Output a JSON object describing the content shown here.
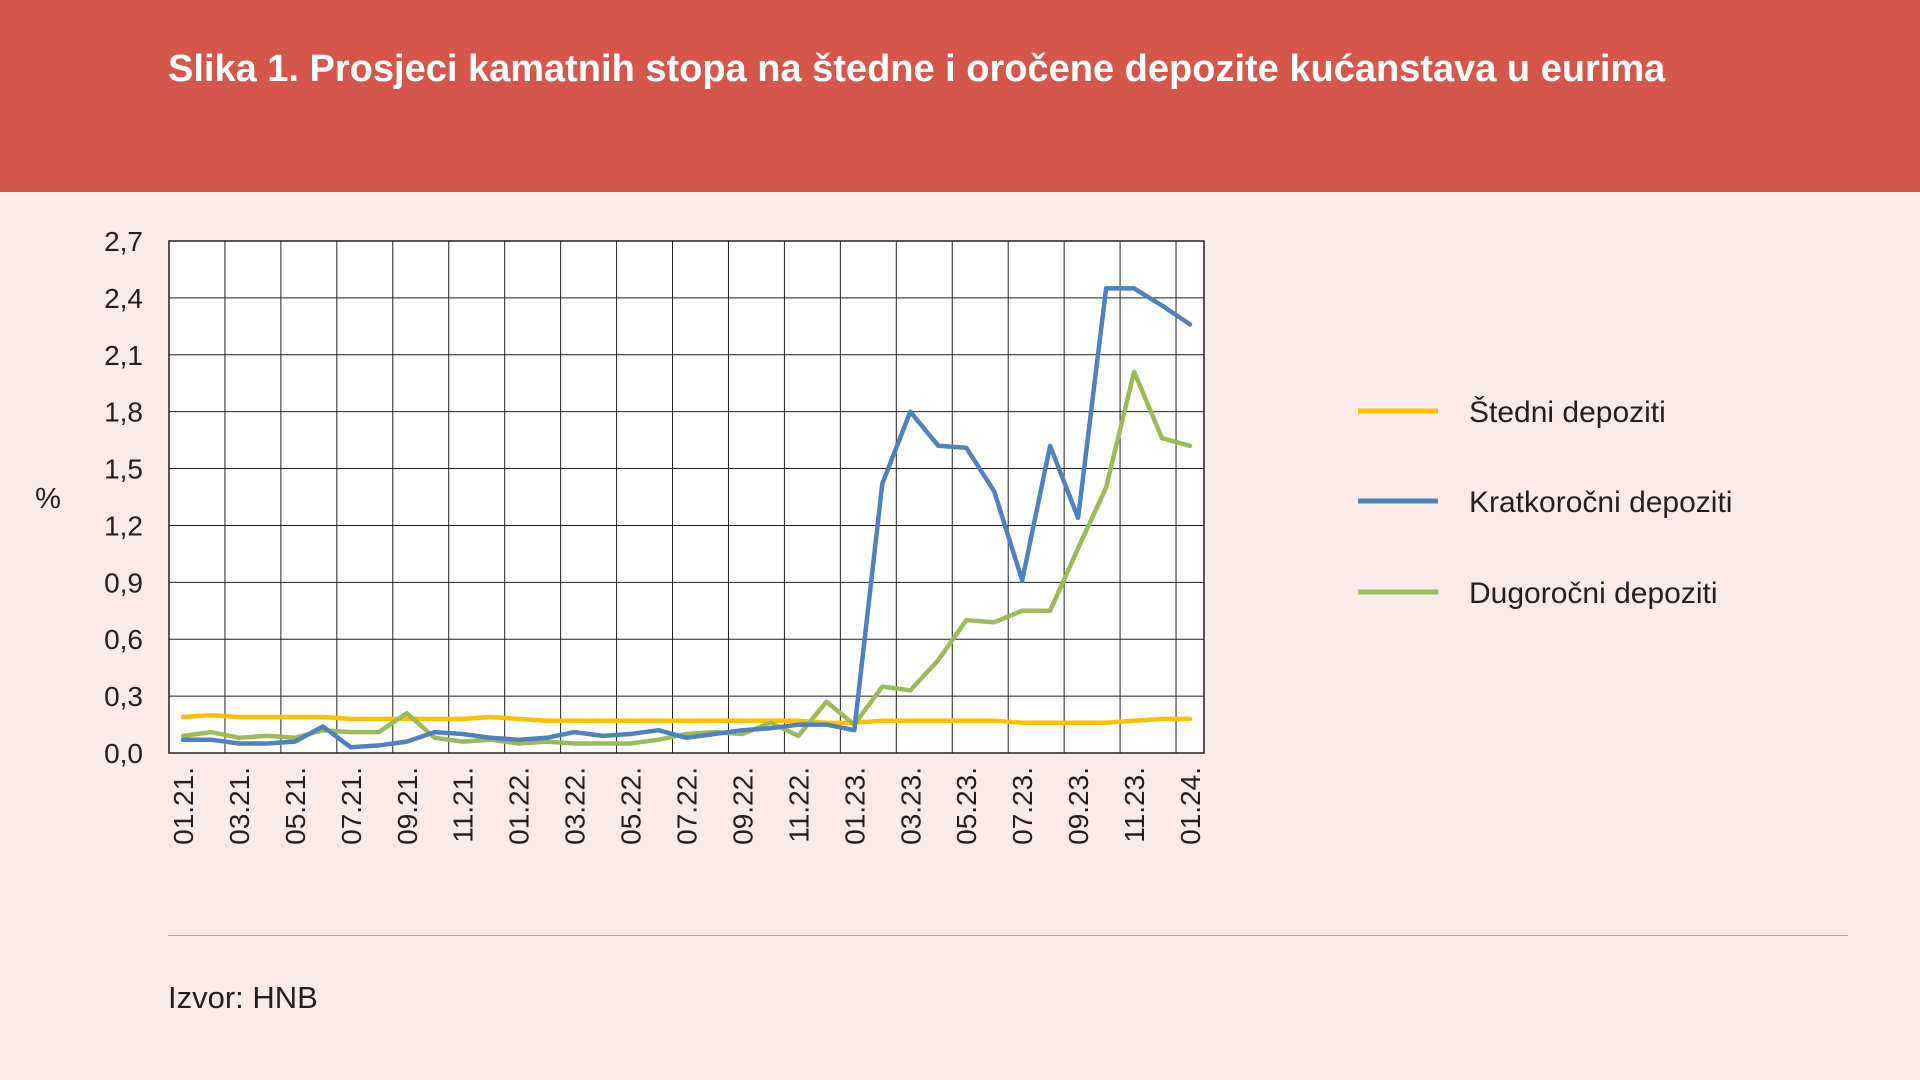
{
  "header": {
    "title": "Slika 1. Prosjeci kamatnih stopa na štedne i oročene depozite kućanstava u eurima"
  },
  "footer": {
    "source": "Izvor: HNB"
  },
  "chart_data": {
    "type": "line",
    "title": "Slika 1. Prosjeci kamatnih stopa na štedne i oročene depozite kućanstava u eurima",
    "xlabel": "",
    "ylabel": "%",
    "ylim": [
      0,
      2.7
    ],
    "yticks": [
      "0,0",
      "0,3",
      "0,6",
      "0,9",
      "1,2",
      "1,5",
      "1,8",
      "2,1",
      "2,4",
      "2,7"
    ],
    "grid": true,
    "legend_position": "right",
    "x": [
      "01.21.",
      "02.21.",
      "03.21.",
      "04.21.",
      "05.21.",
      "06.21.",
      "07.21.",
      "08.21.",
      "09.21.",
      "10.21.",
      "11.21.",
      "12.21.",
      "01.22.",
      "02.22.",
      "03.22.",
      "04.22.",
      "05.22.",
      "06.22.",
      "07.22.",
      "08.22.",
      "09.22.",
      "10.22.",
      "11.22.",
      "12.22.",
      "01.23.",
      "02.23.",
      "03.23.",
      "04.23.",
      "05.23.",
      "06.23.",
      "07.23.",
      "08.23.",
      "09.23.",
      "10.23.",
      "11.23.",
      "12.23.",
      "01.24."
    ],
    "xtick_labels": [
      "01.21.",
      "03.21.",
      "05.21.",
      "07.21.",
      "09.21.",
      "11.21.",
      "01.22.",
      "03.22.",
      "05.22.",
      "07.22.",
      "09.22.",
      "11.22.",
      "01.23.",
      "03.23.",
      "05.23.",
      "07.23.",
      "09.23.",
      "11.23.",
      "01.24."
    ],
    "series": [
      {
        "name": "Štedni depoziti",
        "color": "#ffc000",
        "values": [
          0.19,
          0.2,
          0.19,
          0.19,
          0.19,
          0.19,
          0.18,
          0.18,
          0.18,
          0.18,
          0.18,
          0.19,
          0.18,
          0.17,
          0.17,
          0.17,
          0.17,
          0.17,
          0.17,
          0.17,
          0.17,
          0.17,
          0.17,
          0.16,
          0.16,
          0.17,
          0.17,
          0.17,
          0.17,
          0.17,
          0.16,
          0.16,
          0.16,
          0.16,
          0.17,
          0.18,
          0.18
        ]
      },
      {
        "name": "Kratkoročni depoziti",
        "color": "#4f81bd",
        "values": [
          0.07,
          0.07,
          0.05,
          0.05,
          0.06,
          0.14,
          0.03,
          0.04,
          0.06,
          0.11,
          0.1,
          0.08,
          0.07,
          0.08,
          0.11,
          0.09,
          0.1,
          0.12,
          0.08,
          0.1,
          0.12,
          0.13,
          0.15,
          0.15,
          0.12,
          1.42,
          1.8,
          1.62,
          1.61,
          1.38,
          0.91,
          1.62,
          1.24,
          2.45,
          2.45,
          2.36,
          2.26
        ]
      },
      {
        "name": "Dugoročni depoziti",
        "color": "#9bbb59",
        "values": [
          0.09,
          0.11,
          0.08,
          0.09,
          0.08,
          0.12,
          0.11,
          0.11,
          0.21,
          0.08,
          0.06,
          0.07,
          0.05,
          0.06,
          0.05,
          0.05,
          0.05,
          0.07,
          0.1,
          0.11,
          0.1,
          0.16,
          0.09,
          0.27,
          0.15,
          0.35,
          0.33,
          0.49,
          0.7,
          0.69,
          0.75,
          0.75,
          1.08,
          1.4,
          2.01,
          1.66,
          1.62
        ]
      }
    ]
  }
}
